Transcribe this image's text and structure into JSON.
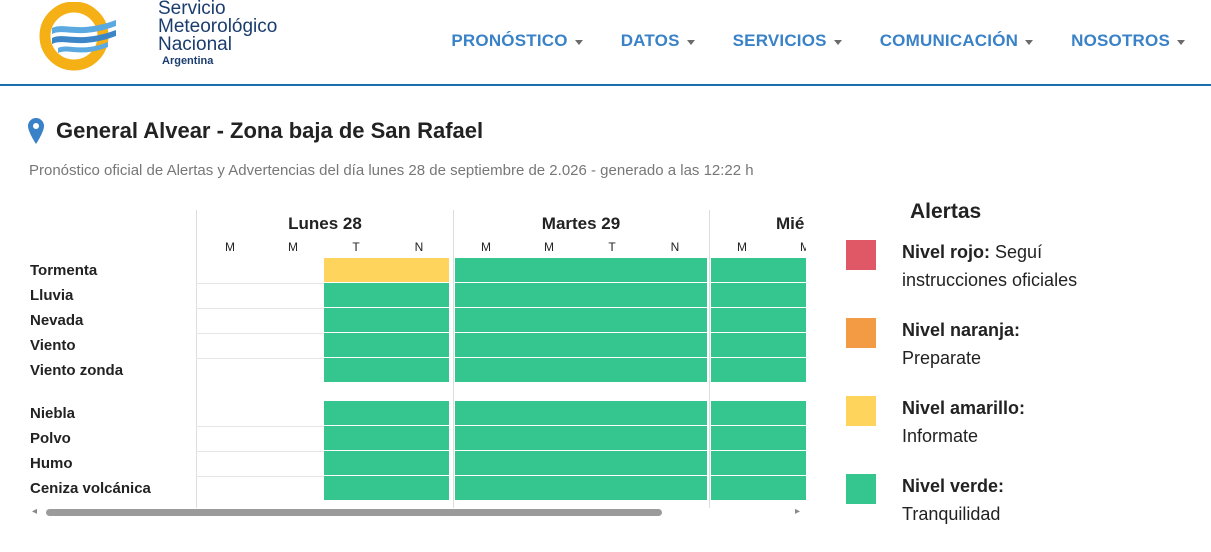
{
  "header": {
    "logo": {
      "line1": "Servicio",
      "line2": "Meteorológico",
      "line3": "Nacional",
      "line4": "Argentina"
    },
    "nav": [
      {
        "label": "PRONÓSTICO"
      },
      {
        "label": "DATOS"
      },
      {
        "label": "SERVICIOS"
      },
      {
        "label": "COMUNICACIÓN"
      },
      {
        "label": "NOSOTROS"
      }
    ]
  },
  "page": {
    "title": "General Alvear - Zona baja de San Rafael",
    "subtitle": "Pronóstico oficial de Alertas y Advertencias del día lunes 28 de septiembre de 2.026 - generado a las 12:22 h"
  },
  "grid": {
    "days": [
      {
        "label": "Lunes 28",
        "periods": [
          "M",
          "M",
          "T",
          "N"
        ]
      },
      {
        "label": "Martes 29",
        "periods": [
          "M",
          "M",
          "T",
          "N"
        ]
      },
      {
        "label": "Mié",
        "periods": [
          "M",
          "M"
        ]
      }
    ],
    "rows": [
      "Tormenta",
      "Lluvia",
      "Nevada",
      "Viento",
      "Viento zonda",
      "Niebla",
      "Polvo",
      "Humo",
      "Ceniza volcánica"
    ]
  },
  "legend": {
    "title": "Alertas",
    "items": [
      {
        "level": "Nivel rojo:",
        "desc": "Seguí",
        "desc2": "instrucciones oficiales",
        "color": "#e05765"
      },
      {
        "level": "Nivel naranja:",
        "desc": "Preparate",
        "color": "#f39a45"
      },
      {
        "level": "Nivel amarillo:",
        "desc": "Informate",
        "color": "#ffd45c"
      },
      {
        "level": "Nivel verde:",
        "desc": "Tranquilidad",
        "color": "#35c68f"
      }
    ]
  }
}
